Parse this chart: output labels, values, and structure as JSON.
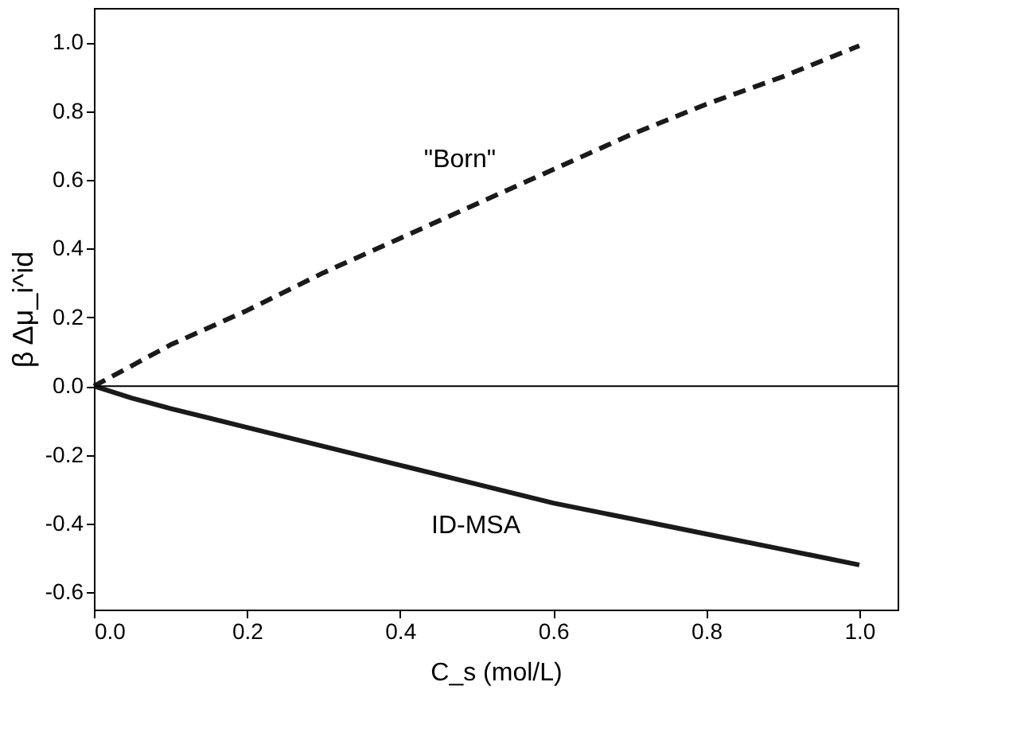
{
  "chart_data": {
    "type": "line",
    "xlabel": "C_s (mol/L)",
    "ylabel": "β Δμ_i^id",
    "xlim": [
      0,
      1.05
    ],
    "xticks": [
      {
        "value": 0,
        "label": "0.0"
      },
      0.2,
      0.4,
      0.6,
      0.8,
      {
        "value": 1,
        "label": "1.0"
      }
    ],
    "ylim": [
      -0.65,
      1.1
    ],
    "yticks": [
      -0.6,
      -0.4,
      -0.2,
      {
        "value": 0,
        "label": "0.0"
      },
      0.2,
      0.4,
      0.6,
      0.8,
      {
        "value": 1,
        "label": "1.0"
      }
    ],
    "series": [
      {
        "color": "#1a1a1a",
        "line_style": "dashed",
        "x": [
          0,
          0.05,
          0.1,
          0.2,
          0.3,
          0.4,
          0.5,
          0.6,
          0.7,
          0.8,
          0.9,
          1.0
        ],
        "values": [
          0,
          0.06,
          0.12,
          0.22,
          0.33,
          0.43,
          0.53,
          0.63,
          0.73,
          0.82,
          0.9,
          0.99
        ]
      },
      {
        "color": "#1a1a1a",
        "line_style": "solid",
        "x": [
          0,
          0.05,
          0.1,
          0.2,
          0.3,
          0.4,
          0.5,
          0.6,
          0.7,
          0.8,
          0.9,
          1.0
        ],
        "values": [
          0,
          -0.035,
          -0.065,
          -0.12,
          -0.175,
          -0.23,
          -0.285,
          -0.34,
          -0.385,
          -0.43,
          -0.475,
          -0.52
        ]
      }
    ],
    "ref_lines": [
      {
        "axis": "y",
        "value": 0,
        "color": "#000000"
      }
    ],
    "annotations": [
      "\"Born\"",
      "ID-MSA"
    ],
    "grid": false,
    "marker": "none"
  }
}
